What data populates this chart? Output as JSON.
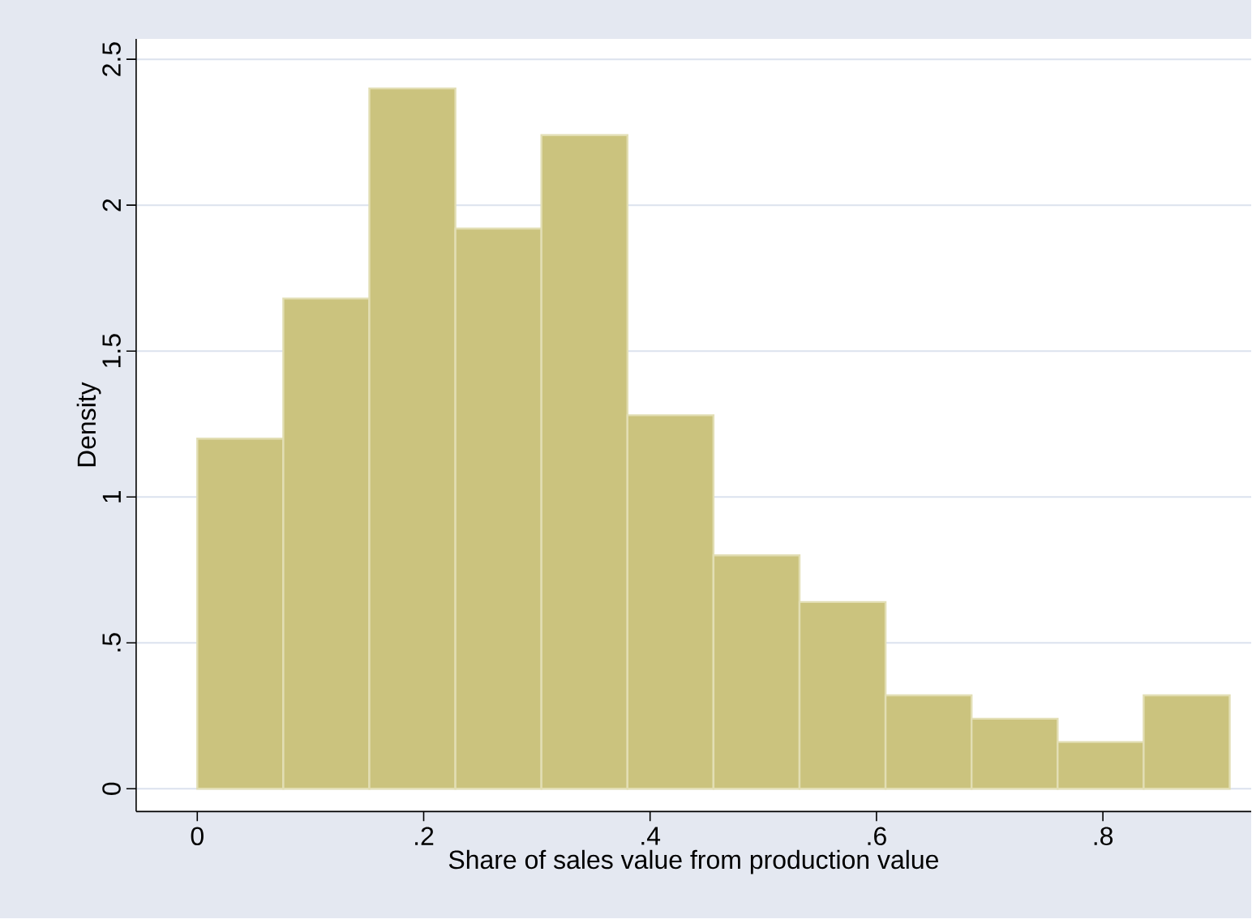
{
  "chart_data": {
    "type": "histogram",
    "xlabel": "Share of sales value from production value",
    "ylabel": "Density",
    "bins": [
      0,
      0.076,
      0.152,
      0.228,
      0.304,
      0.38,
      0.456,
      0.532,
      0.608,
      0.684,
      0.76,
      0.836,
      0.912
    ],
    "values": [
      1.2,
      1.68,
      2.4,
      1.92,
      2.24,
      1.28,
      0.8,
      0.64,
      0.32,
      0.24,
      0.16,
      0.32
    ],
    "color": "#cbc37e",
    "xlim": [
      -0.054,
      0.931
    ],
    "ylim": [
      -0.078,
      2.57
    ],
    "xticks": [
      0,
      {
        "value": 0.2,
        "label": ".2"
      },
      {
        "value": 0.4,
        "label": ".4"
      },
      {
        "value": 0.6,
        "label": ".6"
      },
      {
        "value": 0.8,
        "label": ".8"
      }
    ],
    "yticks": [
      0,
      {
        "value": 0.5,
        "label": ".5"
      },
      1,
      {
        "value": 1.5,
        "label": "1.5"
      },
      2,
      {
        "value": 2.5,
        "label": "2.5"
      }
    ],
    "grid": "y"
  }
}
